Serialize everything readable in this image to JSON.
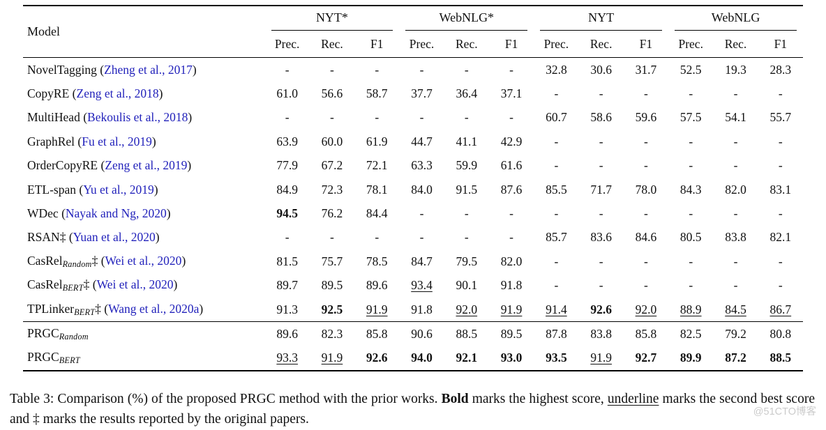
{
  "table": {
    "model_header": "Model",
    "groups": [
      "NYT*",
      "WebNLG*",
      "NYT",
      "WebNLG"
    ],
    "metric_headers": [
      "Prec.",
      "Rec.",
      "F1"
    ],
    "rows": [
      {
        "model": {
          "name": "NovelTagging",
          "sub": "",
          "dagger": false,
          "cite": "Zheng et al., 2017"
        },
        "values": [
          "-",
          "-",
          "-",
          "-",
          "-",
          "-",
          "32.8",
          "30.6",
          "31.7",
          "52.5",
          "19.3",
          "28.3"
        ],
        "marks": "nnnnnnnnnnnn",
        "section_start": false
      },
      {
        "model": {
          "name": "CopyRE",
          "sub": "",
          "dagger": false,
          "cite": "Zeng et al., 2018"
        },
        "values": [
          "61.0",
          "56.6",
          "58.7",
          "37.7",
          "36.4",
          "37.1",
          "-",
          "-",
          "-",
          "-",
          "-",
          "-"
        ],
        "marks": "nnnnnnnnnnnn",
        "section_start": false
      },
      {
        "model": {
          "name": "MultiHead",
          "sub": "",
          "dagger": false,
          "cite": "Bekoulis et al., 2018"
        },
        "values": [
          "-",
          "-",
          "-",
          "-",
          "-",
          "-",
          "60.7",
          "58.6",
          "59.6",
          "57.5",
          "54.1",
          "55.7"
        ],
        "marks": "nnnnnnnnnnnn",
        "section_start": false
      },
      {
        "model": {
          "name": "GraphRel",
          "sub": "",
          "dagger": false,
          "cite": "Fu et al., 2019"
        },
        "values": [
          "63.9",
          "60.0",
          "61.9",
          "44.7",
          "41.1",
          "42.9",
          "-",
          "-",
          "-",
          "-",
          "-",
          "-"
        ],
        "marks": "nnnnnnnnnnnn",
        "section_start": false
      },
      {
        "model": {
          "name": "OrderCopyRE",
          "sub": "",
          "dagger": false,
          "cite": "Zeng et al., 2019"
        },
        "values": [
          "77.9",
          "67.2",
          "72.1",
          "63.3",
          "59.9",
          "61.6",
          "-",
          "-",
          "-",
          "-",
          "-",
          "-"
        ],
        "marks": "nnnnnnnnnnnn",
        "section_start": false
      },
      {
        "model": {
          "name": "ETL-span",
          "sub": "",
          "dagger": false,
          "cite": "Yu et al., 2019"
        },
        "values": [
          "84.9",
          "72.3",
          "78.1",
          "84.0",
          "91.5",
          "87.6",
          "85.5",
          "71.7",
          "78.0",
          "84.3",
          "82.0",
          "83.1"
        ],
        "marks": "nnnnnnnnnnnn",
        "section_start": false
      },
      {
        "model": {
          "name": "WDec",
          "sub": "",
          "dagger": false,
          "cite": "Nayak and Ng, 2020"
        },
        "values": [
          "94.5",
          "76.2",
          "84.4",
          "-",
          "-",
          "-",
          "-",
          "-",
          "-",
          "-",
          "-",
          "-"
        ],
        "marks": "bnnnnnnnnnnn",
        "section_start": false
      },
      {
        "model": {
          "name": "RSAN",
          "sub": "",
          "dagger": true,
          "cite": "Yuan et al., 2020"
        },
        "values": [
          "-",
          "-",
          "-",
          "-",
          "-",
          "-",
          "85.7",
          "83.6",
          "84.6",
          "80.5",
          "83.8",
          "82.1"
        ],
        "marks": "nnnnnnnnnnnn",
        "section_start": false
      },
      {
        "model": {
          "name": "CasRel",
          "sub": "Random",
          "dagger": true,
          "cite": "Wei et al., 2020"
        },
        "values": [
          "81.5",
          "75.7",
          "78.5",
          "84.7",
          "79.5",
          "82.0",
          "-",
          "-",
          "-",
          "-",
          "-",
          "-"
        ],
        "marks": "nnnnnnnnnnnn",
        "section_start": false
      },
      {
        "model": {
          "name": "CasRel",
          "sub": "BERT",
          "dagger": true,
          "cite": "Wei et al., 2020"
        },
        "values": [
          "89.7",
          "89.5",
          "89.6",
          "93.4",
          "90.1",
          "91.8",
          "-",
          "-",
          "-",
          "-",
          "-",
          "-"
        ],
        "marks": "nnnunnnnnnnn",
        "section_start": false
      },
      {
        "model": {
          "name": "TPLinker",
          "sub": "BERT",
          "dagger": true,
          "cite": "Wang et al., 2020a"
        },
        "values": [
          "91.3",
          "92.5",
          "91.9",
          "91.8",
          "92.0",
          "91.9",
          "91.4",
          "92.6",
          "92.0",
          "88.9",
          "84.5",
          "86.7"
        ],
        "marks": "nbunuuubuuuu",
        "section_start": false
      },
      {
        "model": {
          "name": "PRGC",
          "sub": "Random",
          "dagger": false,
          "cite": ""
        },
        "values": [
          "89.6",
          "82.3",
          "85.8",
          "90.6",
          "88.5",
          "89.5",
          "87.8",
          "83.8",
          "85.8",
          "82.5",
          "79.2",
          "80.8"
        ],
        "marks": "nnnnnnnnnnnn",
        "section_start": true
      },
      {
        "model": {
          "name": "PRGC",
          "sub": "BERT",
          "dagger": false,
          "cite": ""
        },
        "values": [
          "93.3",
          "91.9",
          "92.6",
          "94.0",
          "92.1",
          "93.0",
          "93.5",
          "91.9",
          "92.7",
          "89.9",
          "87.2",
          "88.5"
        ],
        "marks": "uubbbbbubbbb",
        "section_start": false
      }
    ]
  },
  "caption": {
    "prefix": "Table 3:  Comparison (%) of the proposed PRGC method with the prior works.  ",
    "bold_word": "Bold",
    "after_bold": " marks the highest score, ",
    "underline_word": "underline",
    "suffix": " marks the second best score and ‡ marks the results reported by the original papers."
  },
  "watermark": "@51CTO博客",
  "colors": {
    "citation": "#2222bb",
    "text": "#111111",
    "watermark": "#cbcbcb"
  }
}
